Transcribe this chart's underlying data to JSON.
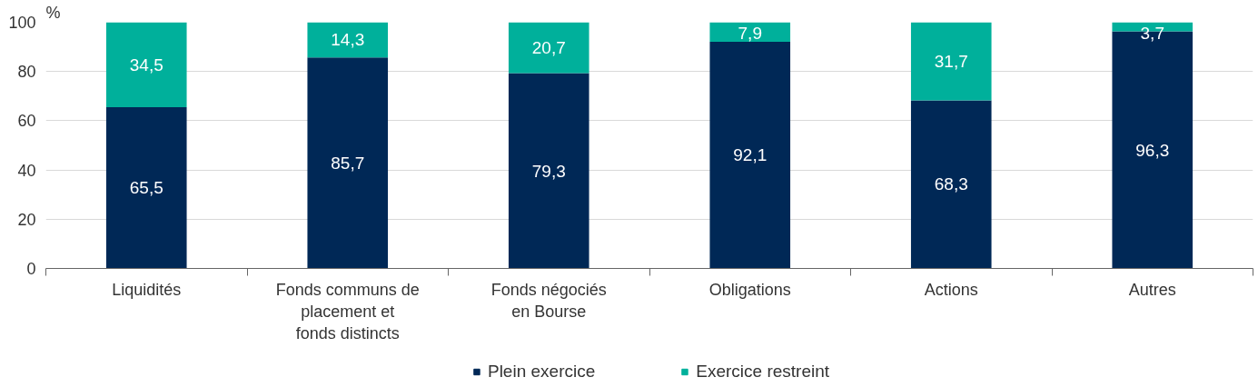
{
  "chart_data": {
    "type": "bar",
    "stacked": true,
    "ylabel": "%",
    "categories": [
      "Liquidités",
      "Fonds communs de placement et fonds distincts",
      "Fonds négociés en Bourse",
      "Obligations",
      "Actions",
      "Autres"
    ],
    "series": [
      {
        "name": "Plein exercice",
        "color": "#002856",
        "values": [
          65.5,
          85.7,
          79.3,
          92.1,
          68.3,
          96.3
        ],
        "value_labels": [
          "65,5",
          "85,7",
          "79,3",
          "92,1",
          "68,3",
          "96,3"
        ]
      },
      {
        "name": "Exercice restreint",
        "color": "#00b09b",
        "values": [
          34.5,
          14.3,
          20.7,
          7.9,
          31.7,
          3.7
        ],
        "value_labels": [
          "34,5",
          "14,3",
          "20,7",
          "7,9",
          "31,7",
          "3,7"
        ]
      }
    ],
    "ylim": [
      0,
      100
    ],
    "yticks": [
      0,
      20,
      40,
      60,
      80,
      100
    ],
    "grid": "y",
    "legend": "bottom",
    "data_labels": true
  }
}
